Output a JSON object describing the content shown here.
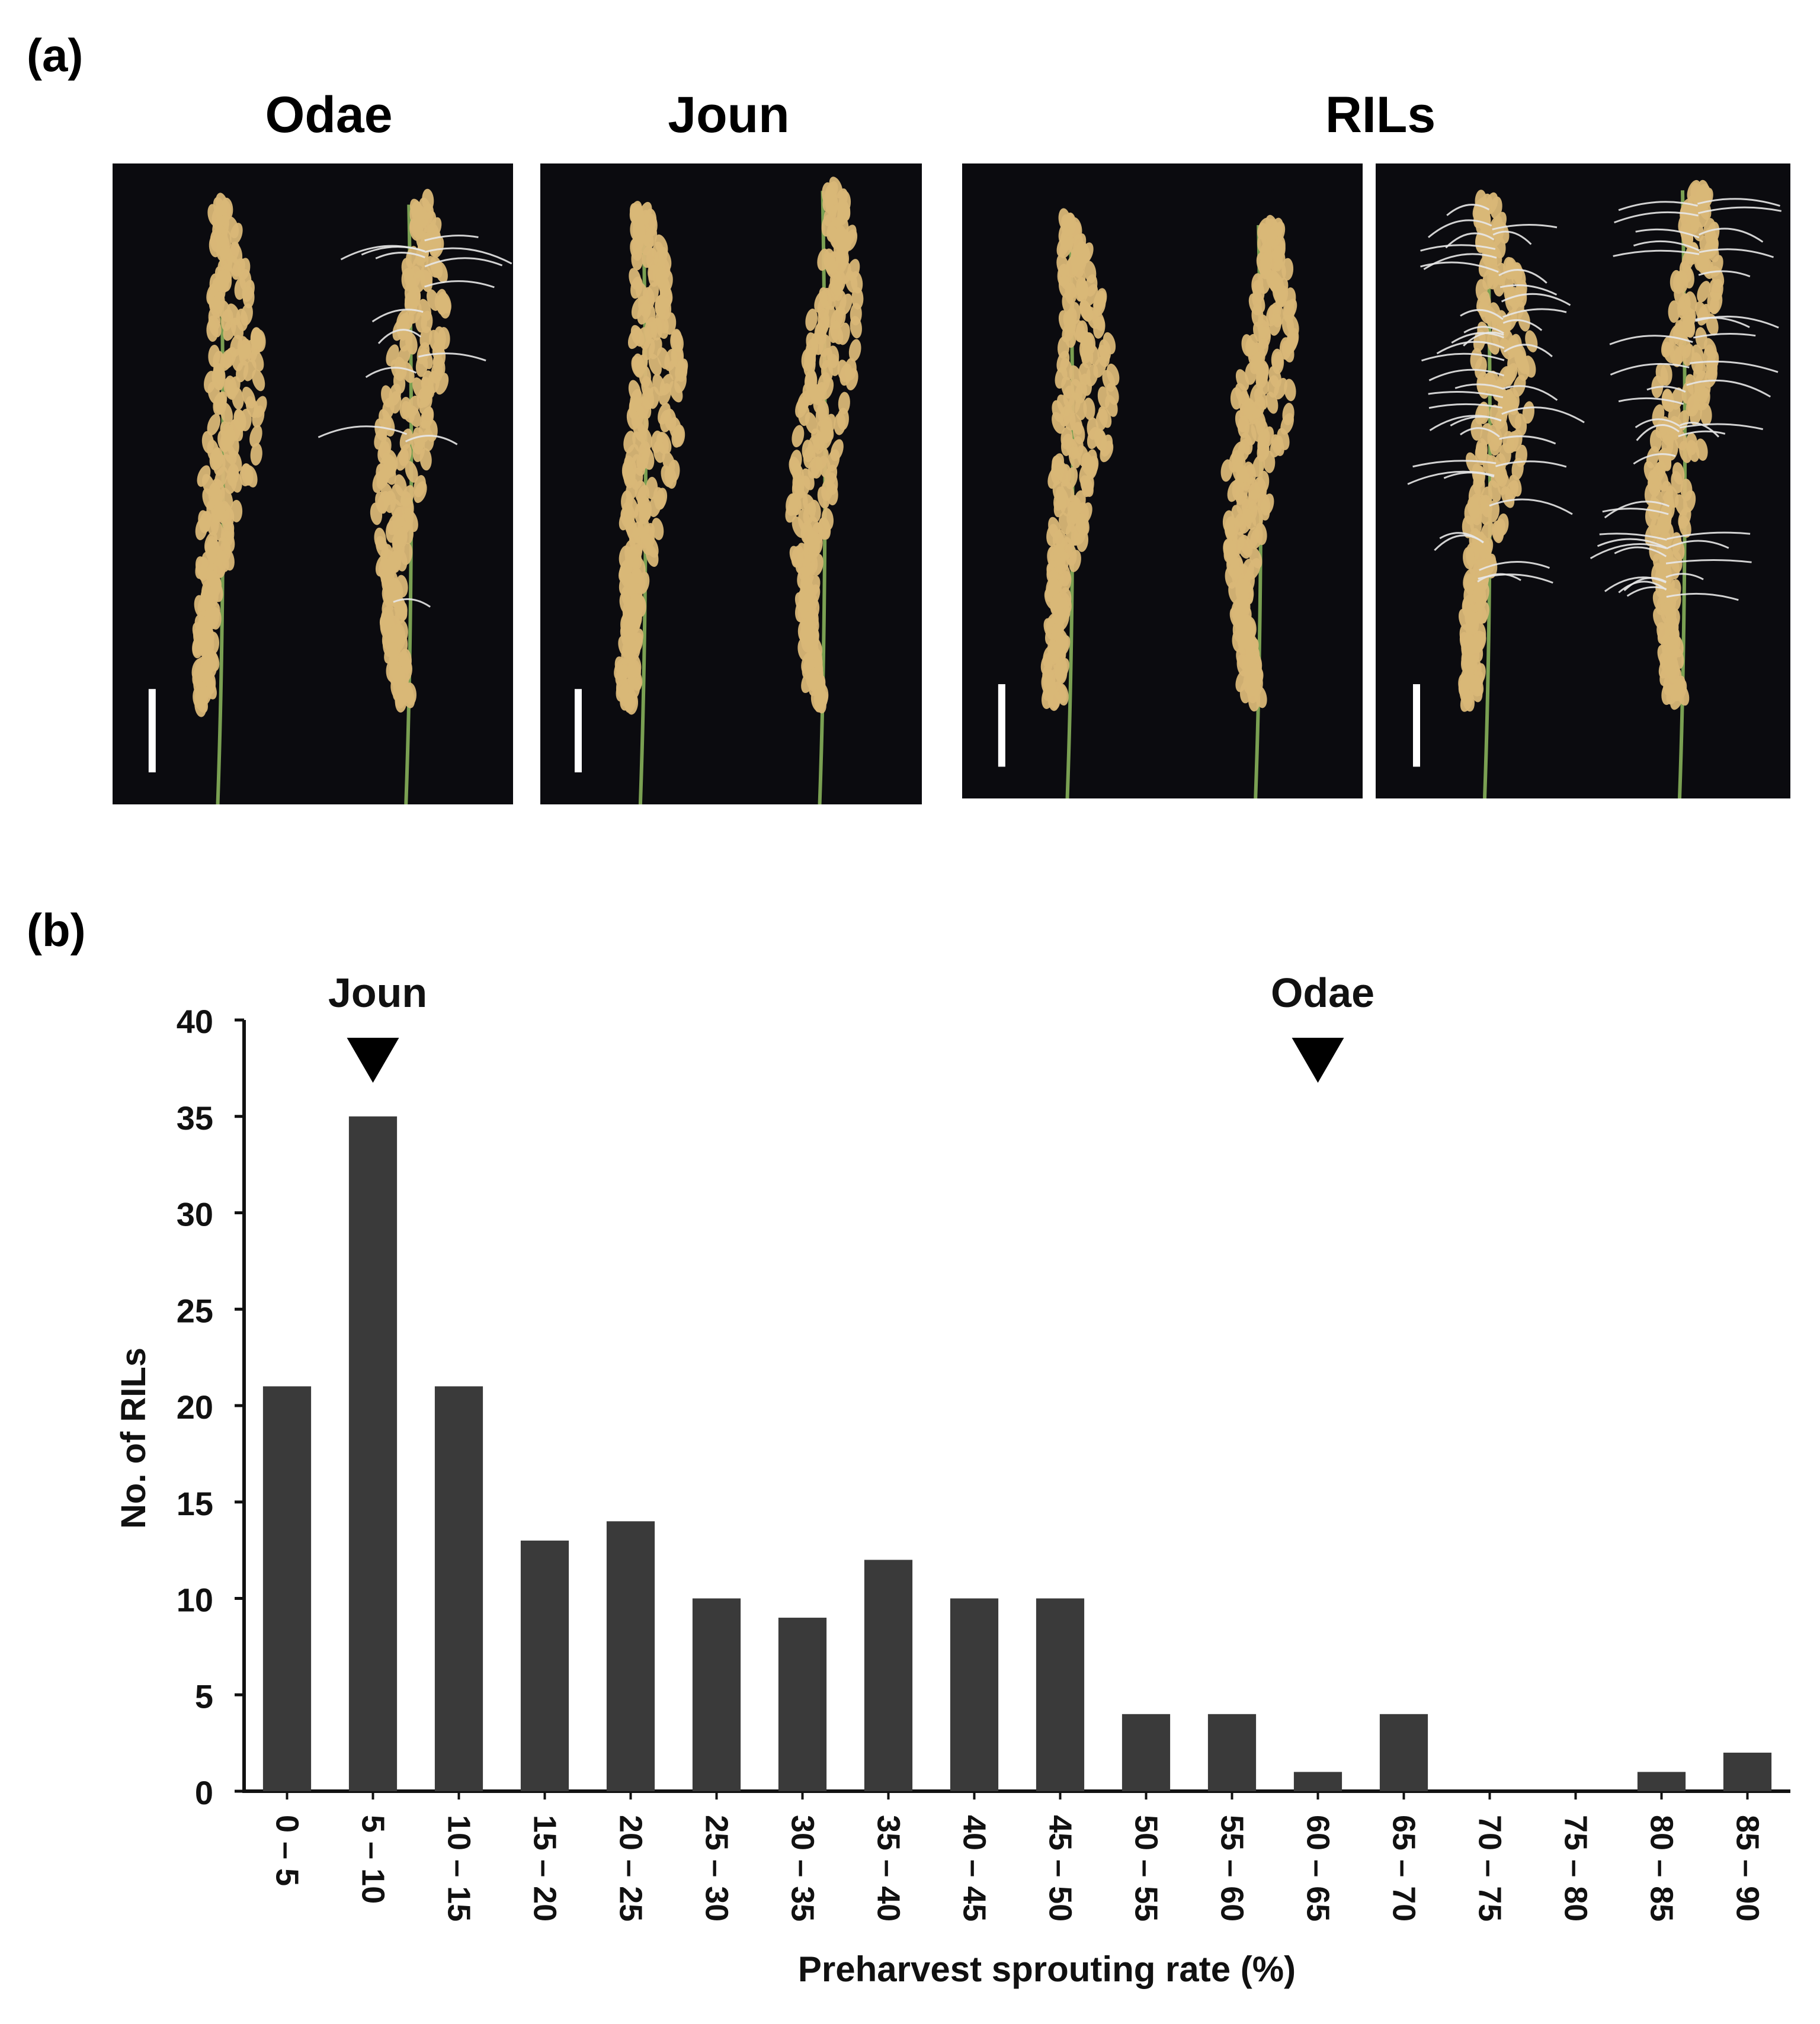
{
  "panel_a": {
    "label": "(a)",
    "headers": {
      "odae": "Odae",
      "joun": "Joun",
      "rils": "RILs"
    },
    "photos": [
      {
        "name": "odae-panicles-photo",
        "sprouted": "few"
      },
      {
        "name": "joun-panicles-photo",
        "sprouted": "none"
      },
      {
        "name": "ril-low-sprouting-photo",
        "sprouted": "none"
      },
      {
        "name": "ril-high-sprouting-photo",
        "sprouted": "many"
      }
    ],
    "colors": {
      "background": "#0b0b0f",
      "grain": "#d9b777",
      "stem": "#7aa052",
      "scale_bar": "#ffffff",
      "sprout": "#e8e8e8"
    }
  },
  "panel_b": {
    "label": "(b)"
  },
  "chart_data": {
    "type": "bar",
    "categories": [
      "0 – 5",
      "5 – 10",
      "10 – 15",
      "15 – 20",
      "20 – 25",
      "25 – 30",
      "30 – 35",
      "35 – 40",
      "40 – 45",
      "45 – 50",
      "50 – 55",
      "55 – 60",
      "60 – 65",
      "65 – 70",
      "70 – 75",
      "75 – 80",
      "80 – 85",
      "85 – 90"
    ],
    "values": [
      21,
      35,
      21,
      13,
      14,
      10,
      9,
      12,
      10,
      10,
      4,
      4,
      1,
      4,
      0,
      0,
      1,
      2
    ],
    "xlabel": "Preharvest sprouting rate (%)",
    "ylabel": "No. of RILs",
    "ylim": [
      0,
      40
    ],
    "yticks": [
      0,
      5,
      10,
      15,
      20,
      25,
      30,
      35,
      40
    ],
    "grid": false,
    "bar_color": "#3a3a3a",
    "annotations": [
      {
        "text": "Joun",
        "category": "5 – 10",
        "marker": "down-triangle"
      },
      {
        "text": "Odae",
        "category": "60 – 65",
        "marker": "down-triangle"
      }
    ]
  }
}
